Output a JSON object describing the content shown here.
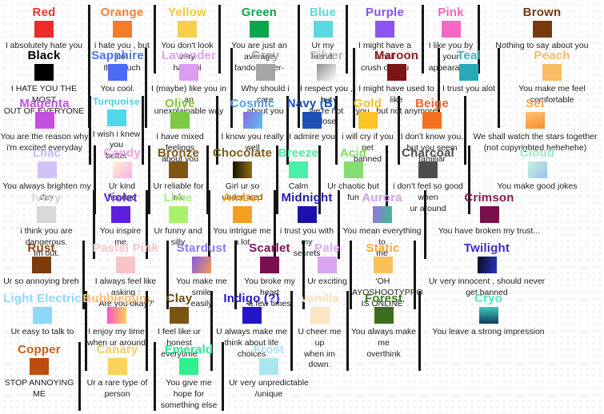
{
  "style": {
    "divider_color": "#151515",
    "dot_color": "#e4e7ee",
    "description_text_color": "#1c1c1c"
  },
  "rows": [
    {
      "entries": [
        {
          "name": "Red",
          "name_color": "#e63333",
          "swatch": "#ee2b2b",
          "desc": "I absolutely hate you"
        },
        {
          "name": "Orange",
          "name_color": "#f0803a",
          "swatch": "#f47b2a",
          "desc": "i hate you , but not\nthat much"
        },
        {
          "name": "Yellow",
          "name_color": "#f7c83d",
          "swatch": "#f9cf4d",
          "desc": "You don't look very\nharmful"
        },
        {
          "name": "Green",
          "name_color": "#0ca448",
          "swatch": "#0aa64b",
          "desc": "You are just an average\nfandom user-"
        },
        {
          "name": "Blue",
          "name_color": "#5cd9de",
          "swatch": "#5adadf",
          "desc": "Ur my friend."
        },
        {
          "name": "Purple",
          "name_color": "#8a53ee",
          "swatch": "#8a55f0",
          "desc": "I might have a small\ncrush on you"
        },
        {
          "name": "Pink",
          "name_color": "#f763c2",
          "swatch": "#f768c5",
          "desc": "I like you by your\nappearance"
        },
        {
          "name": "Brown",
          "name_color": "#76380f",
          "swatch": "#76380f",
          "desc": "Nothing to say about you"
        }
      ]
    },
    {
      "entries": [
        {
          "name": "Black",
          "name_color": "#000000",
          "swatch": "#000000",
          "desc": "I HATE YOU THE MOST\nOUT OF EVERYONE"
        },
        {
          "name": "Sapphire",
          "name_color": "#4a74f2",
          "swatch": "#4a6cf5",
          "desc": "You cool."
        },
        {
          "name": "Lavender",
          "name_color": "#dda2f2",
          "swatch": "#dc9ef2",
          "desc": "I (maybe) like you in an\nunexplainable way"
        },
        {
          "name": "Gray",
          "name_color": "#a3a3a3",
          "swatch": "#a5a5a5",
          "desc": "Why should i care\nabout you"
        },
        {
          "name": "Silver",
          "name_color": "#b5b5b5",
          "swatch": {
            "angle": 135,
            "stops": [
              "#8f8f8f",
              "#ffffff"
            ]
          },
          "desc": "I respect you , but\nwe're not close"
        },
        {
          "name": "Maroon",
          "name_color": "#8c1a1c",
          "swatch": "#7d1416",
          "desc": "I might have used to like\nyou , but not anymore"
        },
        {
          "name": "Teal",
          "name_color": "#35b6c6",
          "swatch": "#2aa9b8",
          "desc": "I trust you alot"
        },
        {
          "name": "Peach",
          "name_color": "#f9b964",
          "swatch": "#f9bd64",
          "desc": "You make me feel\ncomfortable"
        }
      ]
    },
    {
      "entries": [
        {
          "name": "Magenta",
          "name_color": "#c44fe0",
          "swatch": "#c44fe0",
          "desc": "You are the reason why\ni'm excited everyday"
        },
        {
          "name": "Turquoise",
          "name_color": "#45d4e6",
          "name_size": 12,
          "swatch": "#4fd9e8",
          "desc": "I wish i knew you\nbetter"
        },
        {
          "name": "Olive",
          "name_color": "#84c830",
          "swatch": "#7cc944",
          "desc": "I have mixed feelings\nabout you"
        },
        {
          "name": "Cosmic",
          "name_color": "#4fa0ea",
          "swatch": {
            "angle": 120,
            "stops": [
              "#8a68e8",
              "#5bc4ea"
            ]
          },
          "desc": "I know you really well"
        },
        {
          "name": "Navy (B)",
          "name_color": "#1d4fb4",
          "swatch": "#1d50b4",
          "desc": "I admire you"
        },
        {
          "name": "Gold",
          "name_color": "#f5bf2a",
          "swatch": "#fac429",
          "desc": "i will cry if you get\nbanned"
        },
        {
          "name": "Beige",
          "name_color": "#f2622a",
          "swatch": "#f4701f",
          "desc": "I don't know you,\nbut you seem familiar"
        },
        {
          "name": "Set",
          "name_color": "#f9a94f",
          "swatch": {
            "angle": 160,
            "stops": [
              "#fcc276",
              "#f58e2e"
            ]
          },
          "desc": "We shall watch the stars together\n(not copyrighted hehehehe)"
        }
      ]
    },
    {
      "entries": [
        {
          "name": "Lilac",
          "name_color": "#c9b6fa",
          "swatch": "#d2c2fb",
          "desc": "You always brighten my\nday"
        },
        {
          "name": "Candy",
          "name_color": "#f0a0e0",
          "swatch": {
            "angle": 135,
            "stops": [
              "#fdf3d2",
              "#fbaee8"
            ]
          },
          "desc": "Ur kind hearted"
        },
        {
          "name": "Bronze",
          "name_color": "#7d5a14",
          "swatch": "#7d5612",
          "desc": "Ur reliable for info"
        },
        {
          "name": "Chocolate",
          "name_color": "#7a6010",
          "swatch": {
            "angle": 90,
            "stops": [
              "#181402",
              "#8f6c10"
            ]
          },
          "desc": "Girl ur so underrated"
        },
        {
          "name": "Breeze",
          "name_color": "#49eda5",
          "swatch": "#49f0a8",
          "desc": "Calm"
        },
        {
          "name": "Acid",
          "name_color": "#82e460",
          "swatch": "#84dd70",
          "desc": "Ur chaotic but fun"
        },
        {
          "name": "Charcoal",
          "name_color": "#4d4d4d",
          "swatch": "#4d4d4d",
          "desc": "i don't feel so good when\nur around"
        },
        {
          "name": "Cloud",
          "name_color": "#9fe8c4",
          "swatch": {
            "angle": 135,
            "stops": [
              "#c6f2d8",
              "#9cc0f5"
            ]
          },
          "desc": "You make good jokes"
        }
      ]
    },
    {
      "entries": [
        {
          "name": "Ivory",
          "name_color": "#d4d4cc",
          "swatch": "#d9d9d9",
          "desc": "i think you are dangerous.\nIm out."
        },
        {
          "name": "Violet",
          "name_color": "#5c26e0",
          "swatch": "#5c1fdd",
          "desc": "You inspire me"
        },
        {
          "name": "Lime",
          "name_color": "#aaf272",
          "swatch": "#a8f26b",
          "desc": "Ur funny and silly"
        },
        {
          "name": "Amber",
          "name_color": "#f5a022",
          "swatch": "#f49f22",
          "desc": "You intrigue me a lot"
        },
        {
          "name": "Midnight",
          "name_color": "#231ab0",
          "swatch": "#1c10aa",
          "desc": "i trust you with my\nsecrets"
        },
        {
          "name": "Aurora",
          "name_color": "#cf9ff0",
          "swatch": {
            "angle": 100,
            "stops": [
              "#9a6ee6",
              "#38bf8e"
            ]
          },
          "desc": "You mean everything to\nme"
        },
        {
          "name": "Crimson",
          "name_color": "#8c1a50",
          "swatch": "#7a0f4d",
          "desc": "You have broken my trust..."
        }
      ]
    },
    {
      "entries": [
        {
          "name": "Rust",
          "name_color": "#8a4517",
          "swatch": "#7c3c0e",
          "desc": "Ur so annoying breh"
        },
        {
          "name": "Pastel Pink",
          "name_color": "#f9c3cb",
          "swatch": "#f9c3c8",
          "desc": "I always feel like asking :\n'Are you okay?'"
        },
        {
          "name": "Stardust",
          "name_color": "#8a7cf0",
          "swatch": {
            "angle": 115,
            "stops": [
              "#8659ea",
              "#f09c52"
            ]
          },
          "desc": "You make me smile\neasily"
        },
        {
          "name": "Scarlet",
          "name_color": "#7d1450",
          "swatch": "#7a1050",
          "desc": "You broke my heart\na few times"
        },
        {
          "name": "Pale",
          "name_color": "#d9aaf2",
          "swatch": "#d9a5ef",
          "desc": "Ur exciting"
        },
        {
          "name": "Static",
          "name_color": "#f7a62a",
          "swatch": "#fac05e",
          "desc": "'OH AYOSHOOTYPRO\nIS ONLINE'"
        },
        {
          "name": "Twilight",
          "name_color": "#4128c4",
          "swatch": {
            "angle": 100,
            "stops": [
              "#0c0c1e",
              "#2b33bf"
            ]
          },
          "desc": "Ur very innocent , should never\nget banned"
        }
      ]
    },
    {
      "entries": [
        {
          "name": "Light Electric",
          "name_color": "#8fd9fa",
          "swatch": "#8cd8f8",
          "desc": "Ur easy to talk to"
        },
        {
          "name": "Bubblegum",
          "name_color": "#f9bd72",
          "swatch": {
            "angle": 90,
            "stops": [
              "#f556c6",
              "#fbcf5c"
            ]
          },
          "desc": "I enjoy my time\nwhen ur around"
        },
        {
          "name": "Clay",
          "name_color": "#6b4b15",
          "swatch": "#7a5413",
          "desc": "I feel like ur honest\neverytime"
        },
        {
          "name": "Indigo (?)",
          "name_color": "#2a18c0",
          "swatch": "#2315c8",
          "desc": "U always make me\nthink about life choices"
        },
        {
          "name": "Vanilla",
          "name_color": "#fae0b5",
          "swatch": "#fae6c2",
          "desc": "U cheer me up\nwhen im down."
        },
        {
          "name": "Forest",
          "name_color": "#3c7a1e",
          "swatch": "#3d6e1d",
          "desc": "You always make me\noverthink"
        },
        {
          "name": "Cryo",
          "name_color": "#4deab8",
          "swatch": {
            "angle": 180,
            "stops": [
              "#3ecbbd",
              "#153a5e"
            ]
          },
          "desc": "You leave a strong impression"
        }
      ]
    },
    {
      "entries": [
        {
          "name": "Copper",
          "name_color": "#cc5c1c",
          "swatch": "#bf4c0f",
          "desc": "STOP ANNOYING ME"
        },
        {
          "name": "Canary",
          "name_color": "#f7cf5e",
          "swatch": "#f9d457",
          "desc": "Ur a rare type of person"
        },
        {
          "name": "Emerald",
          "name_color": "#2ee896",
          "swatch": "#2ef08e",
          "desc": "You give me hope for\nsomething else"
        },
        {
          "name": "Frost",
          "name_color": "#a5e8f2",
          "swatch": "#aae6f0",
          "desc": "Ur very unpredictable\n/unique"
        }
      ]
    }
  ]
}
